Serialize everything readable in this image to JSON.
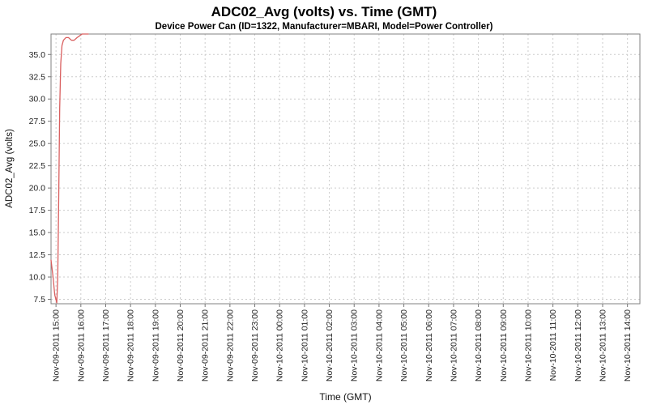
{
  "chart": {
    "title": "ADC02_Avg (volts) vs. Time (GMT)",
    "subtitle": "Device Power Can (ID=1322, Manufacturer=MBARI, Model=Power Controller)",
    "x_axis_label": "Time (GMT)",
    "y_axis_label": "ADC02_Avg (volts)"
  },
  "chart_data": {
    "type": "line",
    "title": "ADC02_Avg (volts) vs. Time (GMT)",
    "subtitle": "Device Power Can (ID=1322, Manufacturer=MBARI, Model=Power Controller)",
    "xlabel": "Time (GMT)",
    "ylabel": "ADC02_Avg (volts)",
    "grid": true,
    "legend": false,
    "colors": {
      "series": "#d95f5f",
      "grid": "#cccccc",
      "border": "#808080",
      "tick": "#777777",
      "tick_text": "#222222"
    },
    "y_ticks": [
      "7.5",
      "10.0",
      "12.5",
      "15.0",
      "17.5",
      "20.0",
      "22.5",
      "25.0",
      "27.5",
      "30.0",
      "32.5",
      "35.0"
    ],
    "y_range": [
      7.0,
      37.3
    ],
    "x_tick_labels": [
      "Nov-09-2011 15:00",
      "Nov-09-2011 16:00",
      "Nov-09-2011 17:00",
      "Nov-09-2011 18:00",
      "Nov-09-2011 19:00",
      "Nov-09-2011 20:00",
      "Nov-09-2011 21:00",
      "Nov-09-2011 22:00",
      "Nov-09-2011 23:00",
      "Nov-10-2011 00:00",
      "Nov-10-2011 01:00",
      "Nov-10-2011 02:00",
      "Nov-10-2011 03:00",
      "Nov-10-2011 04:00",
      "Nov-10-2011 05:00",
      "Nov-10-2011 06:00",
      "Nov-10-2011 07:00",
      "Nov-10-2011 08:00",
      "Nov-10-2011 09:00",
      "Nov-10-2011 10:00",
      "Nov-10-2011 11:00",
      "Nov-10-2011 12:00",
      "Nov-10-2011 13:00",
      "Nov-10-2011 14:00"
    ],
    "x_unit": "hours after Nov-09-2011 15:00 GMT",
    "x_range_hours": [
      -0.2,
      23.5
    ],
    "series": [
      {
        "name": "ADC02_Avg",
        "color": "#d95f5f",
        "points": [
          {
            "time": "Nov-09-2011 14:48",
            "hours": -0.2,
            "value": 11.9
          },
          {
            "time": "Nov-09-2011 14:53",
            "hours": -0.12,
            "value": 10.0
          },
          {
            "time": "Nov-09-2011 14:57",
            "hours": -0.05,
            "value": 8.0
          },
          {
            "time": "Nov-09-2011 15:02",
            "hours": 0.03,
            "value": 7.1
          },
          {
            "time": "Nov-09-2011 15:04",
            "hours": 0.07,
            "value": 10.0
          },
          {
            "time": "Nov-09-2011 15:07",
            "hours": 0.11,
            "value": 19.0
          },
          {
            "time": "Nov-09-2011 15:09",
            "hours": 0.15,
            "value": 29.0
          },
          {
            "time": "Nov-09-2011 15:11",
            "hours": 0.19,
            "value": 34.0
          },
          {
            "time": "Nov-09-2011 15:14",
            "hours": 0.24,
            "value": 36.0
          },
          {
            "time": "Nov-09-2011 15:18",
            "hours": 0.3,
            "value": 36.6
          },
          {
            "time": "Nov-09-2011 15:24",
            "hours": 0.4,
            "value": 36.9
          },
          {
            "time": "Nov-09-2011 15:30",
            "hours": 0.5,
            "value": 36.9
          },
          {
            "time": "Nov-09-2011 15:37",
            "hours": 0.62,
            "value": 36.6
          },
          {
            "time": "Nov-09-2011 15:44",
            "hours": 0.73,
            "value": 36.6
          },
          {
            "time": "Nov-09-2011 15:51",
            "hours": 0.85,
            "value": 36.9
          },
          {
            "time": "Nov-09-2011 15:57",
            "hours": 0.95,
            "value": 37.1
          },
          {
            "time": "Nov-09-2011 16:03",
            "hours": 1.05,
            "value": 37.3
          },
          {
            "time": "Nov-09-2011 16:18",
            "hours": 1.3,
            "value": 37.3
          }
        ]
      }
    ]
  }
}
